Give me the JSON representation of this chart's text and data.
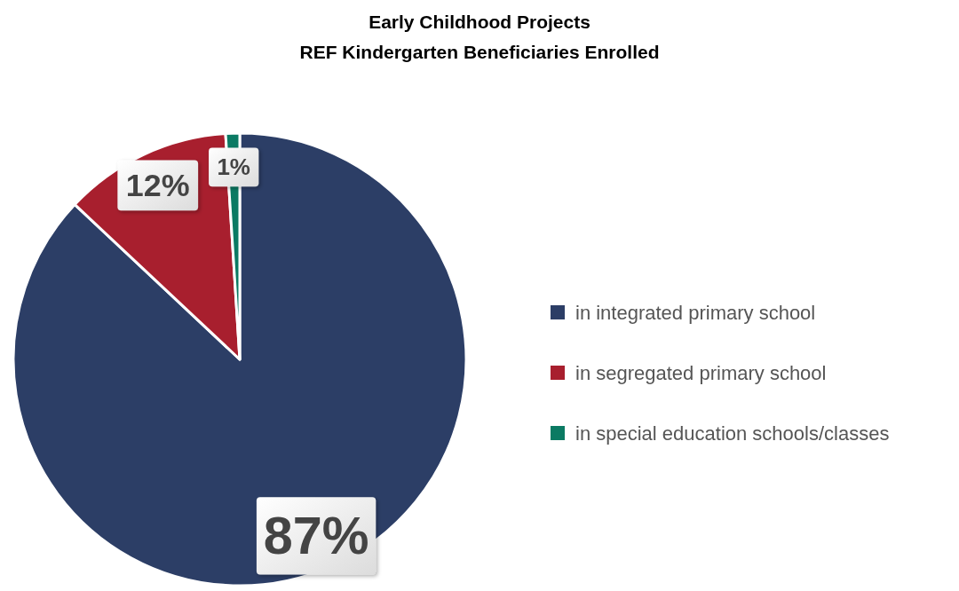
{
  "chart_data": {
    "type": "pie",
    "title": "Early Childhood Projects",
    "subtitle": "REF Kindergarten Beneficiaries Enrolled",
    "categories": [
      "in integrated primary school",
      "in segregated primary school",
      "in special education schools/classes"
    ],
    "values": [
      87,
      12,
      1
    ],
    "colors": [
      "#2c3e66",
      "#a81f2e",
      "#0b7a63"
    ],
    "value_labels": [
      "87%",
      "12%",
      "1%"
    ],
    "legend": "right"
  }
}
